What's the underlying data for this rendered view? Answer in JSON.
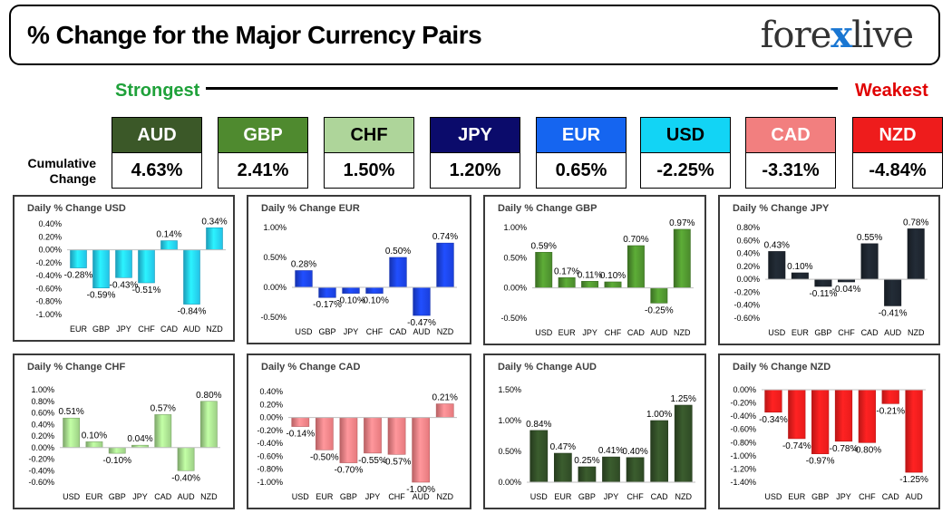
{
  "header": {
    "title": "% Change for the Major Currency Pairs",
    "logo_left": "fore",
    "logo_x": "x",
    "logo_right": "live"
  },
  "ranking": {
    "strongest_label": "Strongest",
    "weakest_label": "Weakest",
    "cumulative_label": "Cumulative Change",
    "currencies": [
      {
        "code": "AUD",
        "value": "4.63%",
        "color": "#3b5828",
        "text_color": "#ffffff"
      },
      {
        "code": "GBP",
        "value": "2.41%",
        "color": "#4f8a2f",
        "text_color": "#ffffff"
      },
      {
        "code": "CHF",
        "value": "1.50%",
        "color": "#aed59a",
        "text_color": "#000000"
      },
      {
        "code": "JPY",
        "value": "1.20%",
        "color": "#0b0b6b",
        "text_color": "#ffffff"
      },
      {
        "code": "EUR",
        "value": "0.65%",
        "color": "#1565f0",
        "text_color": "#ffffff"
      },
      {
        "code": "USD",
        "value": "-2.25%",
        "color": "#12d4f5",
        "text_color": "#000000"
      },
      {
        "code": "CAD",
        "value": "-3.31%",
        "color": "#f27f7f",
        "text_color": "#ffffff"
      },
      {
        "code": "NZD",
        "value": "-4.84%",
        "color": "#ee1c1c",
        "text_color": "#ffffff"
      }
    ]
  },
  "chart_data": [
    {
      "type": "bar",
      "title": "Daily % Change USD",
      "categories": [
        "EUR",
        "GBP",
        "JPY",
        "CHF",
        "CAD",
        "AUD",
        "NZD"
      ],
      "values": [
        -0.28,
        -0.59,
        -0.43,
        -0.51,
        0.14,
        -0.84,
        0.34
      ],
      "labels": [
        "-0.28%",
        "-0.59%",
        "-0.43%",
        "-0.51%",
        "0.14%",
        "-0.84%",
        "0.34%"
      ],
      "ylim": [
        -1.0,
        0.4
      ],
      "ticks": [
        0.4,
        0.2,
        0.0,
        -0.2,
        -0.4,
        -0.6,
        -0.8,
        -1.0
      ],
      "tick_labels": [
        "0.40%",
        "0.20%",
        "0.00%",
        "-0.20%",
        "-0.40%",
        "-0.60%",
        "-0.80%",
        "-1.00%"
      ],
      "color": "#23c2e6"
    },
    {
      "type": "bar",
      "title": "Daily % Change EUR",
      "categories": [
        "USD",
        "GBP",
        "JPY",
        "CHF",
        "CAD",
        "AUD",
        "NZD"
      ],
      "values": [
        0.28,
        -0.17,
        -0.1,
        -0.1,
        0.5,
        -0.47,
        0.74
      ],
      "labels": [
        "0.28%",
        "-0.17%",
        "-0.10%",
        "-0.10%",
        "0.50%",
        "-0.47%",
        "0.74%"
      ],
      "ylim": [
        -0.5,
        1.0
      ],
      "ticks": [
        1.0,
        0.5,
        0.0,
        -0.5
      ],
      "tick_labels": [
        "1.00%",
        "0.50%",
        "0.00%",
        "-0.50%"
      ],
      "color": "#1a3fdb"
    },
    {
      "type": "bar",
      "title": "Daily % Change GBP",
      "categories": [
        "USD",
        "EUR",
        "JPY",
        "CHF",
        "CAD",
        "AUD",
        "NZD"
      ],
      "values": [
        0.59,
        0.17,
        0.11,
        0.1,
        0.7,
        -0.25,
        0.97
      ],
      "labels": [
        "0.59%",
        "0.17%",
        "0.11%",
        "0.10%",
        "0.70%",
        "-0.25%",
        "0.97%"
      ],
      "ylim": [
        -0.5,
        1.0
      ],
      "ticks": [
        1.0,
        0.5,
        0.0,
        -0.5
      ],
      "tick_labels": [
        "1.00%",
        "0.50%",
        "0.00%",
        "-0.50%"
      ],
      "color": "#4a8a2c"
    },
    {
      "type": "bar",
      "title": "Daily % Change JPY",
      "categories": [
        "USD",
        "EUR",
        "GBP",
        "CHF",
        "CAD",
        "AUD",
        "NZD"
      ],
      "values": [
        0.43,
        0.1,
        -0.11,
        -0.04,
        0.55,
        -0.41,
        0.78
      ],
      "labels": [
        "0.43%",
        "0.10%",
        "-0.11%",
        "-0.04%",
        "0.55%",
        "-0.41%",
        "0.78%"
      ],
      "ylim": [
        -0.6,
        0.8
      ],
      "ticks": [
        0.8,
        0.6,
        0.4,
        0.2,
        0.0,
        -0.2,
        -0.4,
        -0.6
      ],
      "tick_labels": [
        "0.80%",
        "0.60%",
        "0.40%",
        "0.20%",
        "0.00%",
        "-0.20%",
        "-0.40%",
        "-0.60%"
      ],
      "color": "#1c232c"
    },
    {
      "type": "bar",
      "title": "Daily % Change CHF",
      "categories": [
        "USD",
        "EUR",
        "GBP",
        "JPY",
        "CAD",
        "AUD",
        "NZD"
      ],
      "values": [
        0.51,
        0.1,
        -0.1,
        0.04,
        0.57,
        -0.4,
        0.8
      ],
      "labels": [
        "0.51%",
        "0.10%",
        "-0.10%",
        "0.04%",
        "0.57%",
        "-0.40%",
        "0.80%"
      ],
      "ylim": [
        -0.6,
        1.0
      ],
      "ticks": [
        1.0,
        0.8,
        0.6,
        0.4,
        0.2,
        0.0,
        -0.2,
        -0.4,
        -0.6
      ],
      "tick_labels": [
        "1.00%",
        "0.80%",
        "0.60%",
        "0.40%",
        "0.20%",
        "0.00%",
        "-0.20%",
        "-0.40%",
        "-0.60%"
      ],
      "color": "#9ccf85"
    },
    {
      "type": "bar",
      "title": "Daily % Change CAD",
      "categories": [
        "USD",
        "EUR",
        "GBP",
        "JPY",
        "CHF",
        "AUD",
        "NZD"
      ],
      "values": [
        -0.14,
        -0.5,
        -0.7,
        -0.55,
        -0.57,
        -1.0,
        0.21
      ],
      "labels": [
        "-0.14%",
        "-0.50%",
        "-0.70%",
        "-0.55%",
        "-0.57%",
        "-1.00%",
        "0.21%"
      ],
      "ylim": [
        -1.0,
        0.4
      ],
      "ticks": [
        0.4,
        0.2,
        0.0,
        -0.2,
        -0.4,
        -0.6,
        -0.8,
        -1.0
      ],
      "tick_labels": [
        "0.40%",
        "0.20%",
        "0.00%",
        "-0.20%",
        "-0.40%",
        "-0.60%",
        "-0.80%",
        "-1.00%"
      ],
      "color": "#e6797d"
    },
    {
      "type": "bar",
      "title": "Daily % Change AUD",
      "categories": [
        "USD",
        "EUR",
        "GBP",
        "JPY",
        "CHF",
        "CAD",
        "NZD"
      ],
      "values": [
        0.84,
        0.47,
        0.25,
        0.41,
        0.4,
        1.0,
        1.25
      ],
      "labels": [
        "0.84%",
        "0.47%",
        "0.25%",
        "0.41%",
        "0.40%",
        "1.00%",
        "1.25%"
      ],
      "ylim": [
        0.0,
        1.5
      ],
      "ticks": [
        1.5,
        1.0,
        0.5,
        0.0
      ],
      "tick_labels": [
        "1.50%",
        "1.00%",
        "0.50%",
        "0.00%"
      ],
      "color": "#2f4a25"
    },
    {
      "type": "bar",
      "title": "Daily % Change NZD",
      "categories": [
        "USD",
        "EUR",
        "GBP",
        "JPY",
        "CHF",
        "CAD",
        "AUD"
      ],
      "values": [
        -0.34,
        -0.74,
        -0.97,
        -0.78,
        -0.8,
        -0.21,
        -1.25
      ],
      "labels": [
        "-0.34%",
        "-0.74%",
        "-0.97%",
        "-0.78%",
        "-0.80%",
        "-0.21%",
        "-1.25%"
      ],
      "ylim": [
        -1.4,
        0.0
      ],
      "ticks": [
        0.0,
        -0.2,
        -0.4,
        -0.6,
        -0.8,
        -1.0,
        -1.2,
        -1.4
      ],
      "tick_labels": [
        "0.00%",
        "-0.20%",
        "-0.40%",
        "-0.60%",
        "-0.80%",
        "-1.00%",
        "-1.20%",
        "-1.40%"
      ],
      "color": "#e81b1b"
    }
  ]
}
